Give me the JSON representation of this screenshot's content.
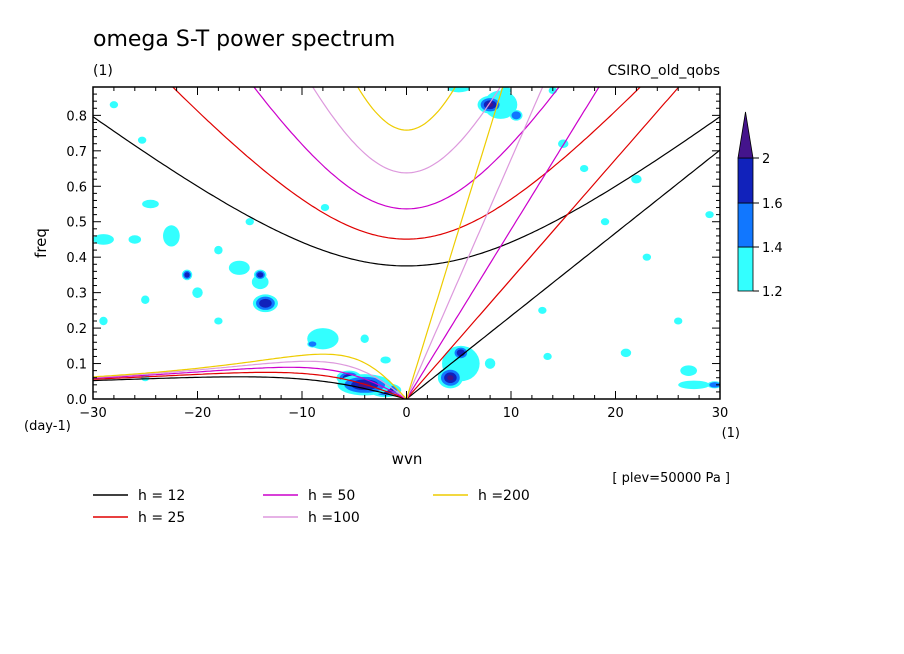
{
  "chart_data": {
    "type": "heatmap",
    "title": "omega S-T power spectrum",
    "subtitle_left": "(1)",
    "subtitle_right": "CSIRO_old_qobs",
    "xlabel": "wvn",
    "ylabel": "freq",
    "x_unit": "(1)",
    "y_unit": "(day-1)",
    "xlim": [
      -30,
      30
    ],
    "ylim": [
      0,
      0.88
    ],
    "x_ticks": [
      -30,
      -20,
      -10,
      0,
      10,
      20,
      30
    ],
    "y_ticks": [
      0.0,
      0.1,
      0.2,
      0.3,
      0.4,
      0.5,
      0.6,
      0.7,
      0.8
    ],
    "note": "[ plev=50000 Pa ]",
    "colorbar": {
      "levels": [
        1.2,
        1.4,
        1.6,
        2
      ],
      "colors": [
        "#33ffff",
        "#1177ff",
        "#1122bb",
        "#44148c"
      ]
    },
    "dispersion_curves": [
      {
        "label": "h = 12",
        "h": 12,
        "color": "#000000"
      },
      {
        "label": "h = 25",
        "h": 25,
        "color": "#e00000"
      },
      {
        "label": "h = 50",
        "h": 50,
        "color": "#cc00cc"
      },
      {
        "label": "h =100",
        "h": 100,
        "color": "#dd99dd"
      },
      {
        "label": "h =200",
        "h": 200,
        "color": "#eecc00"
      }
    ],
    "blobs": [
      {
        "x": -4,
        "y": 0.04,
        "rx": 2.6,
        "ry": 0.03,
        "level": 4
      },
      {
        "x": -2,
        "y": 0.025,
        "rx": 1.5,
        "ry": 0.02,
        "level": 3
      },
      {
        "x": -5.5,
        "y": 0.06,
        "rx": 1.2,
        "ry": 0.02,
        "level": 3
      },
      {
        "x": 4.2,
        "y": 0.06,
        "rx": 1.2,
        "ry": 0.03,
        "level": 4
      },
      {
        "x": 5.2,
        "y": 0.13,
        "rx": 0.8,
        "ry": 0.02,
        "level": 3
      },
      {
        "x": 8,
        "y": 0.83,
        "rx": 1.2,
        "ry": 0.025,
        "level": 4
      },
      {
        "x": -13.5,
        "y": 0.27,
        "rx": 1.2,
        "ry": 0.025,
        "level": 3
      },
      {
        "x": -21,
        "y": 0.35,
        "rx": 0.5,
        "ry": 0.015,
        "level": 3
      },
      {
        "x": -14,
        "y": 0.35,
        "rx": 0.6,
        "ry": 0.015,
        "level": 3
      },
      {
        "x": -8,
        "y": 0.17,
        "rx": 1.5,
        "ry": 0.03,
        "level": 1
      },
      {
        "x": -9,
        "y": 0.155,
        "rx": 0.5,
        "ry": 0.01,
        "level": 2
      },
      {
        "x": -29,
        "y": 0.45,
        "rx": 1.0,
        "ry": 0.015,
        "level": 1
      },
      {
        "x": -22.5,
        "y": 0.46,
        "rx": 0.8,
        "ry": 0.03,
        "level": 1
      },
      {
        "x": -26,
        "y": 0.45,
        "rx": 0.6,
        "ry": 0.012,
        "level": 1
      },
      {
        "x": -25,
        "y": 0.28,
        "rx": 0.4,
        "ry": 0.012,
        "level": 1
      },
      {
        "x": -18,
        "y": 0.42,
        "rx": 0.4,
        "ry": 0.012,
        "level": 1
      },
      {
        "x": -16,
        "y": 0.37,
        "rx": 1.0,
        "ry": 0.02,
        "level": 1
      },
      {
        "x": -14,
        "y": 0.33,
        "rx": 0.8,
        "ry": 0.02,
        "level": 1
      },
      {
        "x": -7.8,
        "y": 0.54,
        "rx": 0.4,
        "ry": 0.01,
        "level": 1
      },
      {
        "x": -25.3,
        "y": 0.73,
        "rx": 0.4,
        "ry": 0.01,
        "level": 1
      },
      {
        "x": -24.5,
        "y": 0.55,
        "rx": 0.8,
        "ry": 0.012,
        "level": 1
      },
      {
        "x": -20,
        "y": 0.3,
        "rx": 0.5,
        "ry": 0.015,
        "level": 1
      },
      {
        "x": -4,
        "y": 0.17,
        "rx": 0.4,
        "ry": 0.012,
        "level": 1
      },
      {
        "x": 5.2,
        "y": 0.1,
        "rx": 1.8,
        "ry": 0.05,
        "level": 1
      },
      {
        "x": 8,
        "y": 0.1,
        "rx": 0.5,
        "ry": 0.015,
        "level": 1
      },
      {
        "x": 9,
        "y": 0.83,
        "rx": 1.6,
        "ry": 0.04,
        "level": 1
      },
      {
        "x": 10.5,
        "y": 0.8,
        "rx": 0.6,
        "ry": 0.015,
        "level": 2
      },
      {
        "x": 5,
        "y": 0.875,
        "rx": 1.0,
        "ry": 0.01,
        "level": 1
      },
      {
        "x": 15,
        "y": 0.72,
        "rx": 0.5,
        "ry": 0.012,
        "level": 1
      },
      {
        "x": 22,
        "y": 0.62,
        "rx": 0.5,
        "ry": 0.012,
        "level": 1
      },
      {
        "x": 27.5,
        "y": 0.04,
        "rx": 1.5,
        "ry": 0.012,
        "level": 1
      },
      {
        "x": 29.5,
        "y": 0.04,
        "rx": 0.7,
        "ry": 0.01,
        "level": 2
      },
      {
        "x": 13.5,
        "y": 0.12,
        "rx": 0.4,
        "ry": 0.01,
        "level": 1
      },
      {
        "x": 21,
        "y": 0.13,
        "rx": 0.5,
        "ry": 0.012,
        "level": 1
      },
      {
        "x": 27,
        "y": 0.08,
        "rx": 0.8,
        "ry": 0.015,
        "level": 1
      },
      {
        "x": 26,
        "y": 0.22,
        "rx": 0.4,
        "ry": 0.01,
        "level": 1
      },
      {
        "x": 29,
        "y": 0.52,
        "rx": 0.4,
        "ry": 0.01,
        "level": 1
      },
      {
        "x": 17,
        "y": 0.65,
        "rx": 0.4,
        "ry": 0.01,
        "level": 1
      },
      {
        "x": 19,
        "y": 0.5,
        "rx": 0.4,
        "ry": 0.01,
        "level": 1
      },
      {
        "x": -29,
        "y": 0.22,
        "rx": 0.4,
        "ry": 0.012,
        "level": 1
      },
      {
        "x": -25,
        "y": 0.06,
        "rx": 0.4,
        "ry": 0.01,
        "level": 1
      },
      {
        "x": -15,
        "y": 0.5,
        "rx": 0.4,
        "ry": 0.01,
        "level": 1
      },
      {
        "x": -28,
        "y": 0.83,
        "rx": 0.4,
        "ry": 0.01,
        "level": 1
      },
      {
        "x": -18,
        "y": 0.22,
        "rx": 0.4,
        "ry": 0.01,
        "level": 1
      },
      {
        "x": 13,
        "y": 0.25,
        "rx": 0.4,
        "ry": 0.01,
        "level": 1
      },
      {
        "x": 23,
        "y": 0.4,
        "rx": 0.4,
        "ry": 0.01,
        "level": 1
      },
      {
        "x": -2,
        "y": 0.11,
        "rx": 0.5,
        "ry": 0.01,
        "level": 1
      },
      {
        "x": 9.5,
        "y": 0.87,
        "rx": 0.5,
        "ry": 0.01,
        "level": 1
      },
      {
        "x": 14,
        "y": 0.87,
        "rx": 0.4,
        "ry": 0.01,
        "level": 1
      }
    ]
  }
}
